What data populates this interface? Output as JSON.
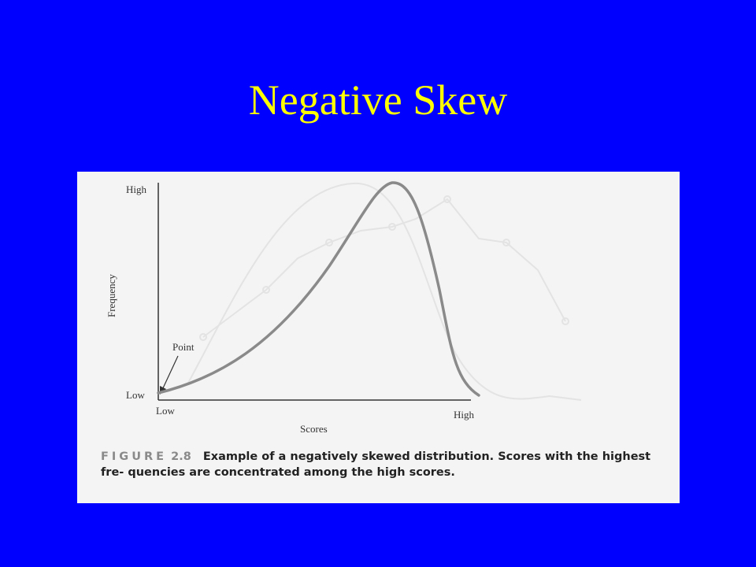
{
  "slide": {
    "title": "Negative Skew"
  },
  "figure": {
    "y_axis_label": "Frequency",
    "y_high": "High",
    "y_low": "Low",
    "x_axis_label": "Scores",
    "x_low": "Low",
    "x_high": "High",
    "annotation": "Point",
    "caption_label": "FIGURE",
    "caption_number": "2.8",
    "caption_text": "Example of a negatively skewed distribution. Scores with the highest fre- quencies are concentrated among the high scores."
  },
  "colors": {
    "background": "#0000ff",
    "title": "#ffff00",
    "curve": "#8a8a8a"
  }
}
